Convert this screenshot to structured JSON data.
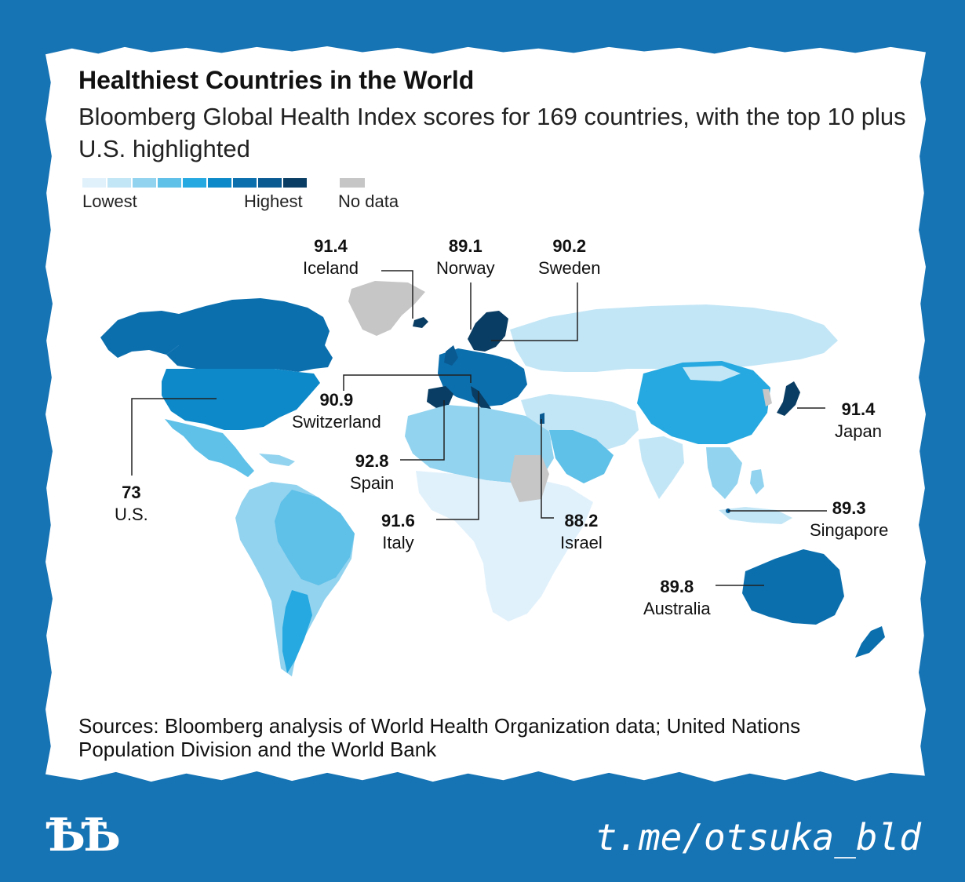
{
  "title": "Healthiest Countries in the World",
  "subtitle": "Bloomberg Global Health Index scores for 169 countries, with the top 10 plus U.S. highlighted",
  "legend": {
    "low_label": "Lowest",
    "high_label": "Highest",
    "nodata_label": "No data",
    "colors": [
      "#e1f1fb",
      "#c3e6f6",
      "#92d3ef",
      "#5fc0e8",
      "#26a9e0",
      "#0d89c9",
      "#0b6fae",
      "#0a5a92",
      "#0a3d63"
    ],
    "nodata_color": "#c6c6c6"
  },
  "callouts": [
    {
      "score": "91.4",
      "country": "Iceland"
    },
    {
      "score": "89.1",
      "country": "Norway"
    },
    {
      "score": "90.2",
      "country": "Sweden"
    },
    {
      "score": "90.9",
      "country": "Switzerland"
    },
    {
      "score": "92.8",
      "country": "Spain"
    },
    {
      "score": "73",
      "country": "U.S."
    },
    {
      "score": "91.6",
      "country": "Italy"
    },
    {
      "score": "88.2",
      "country": "Israel"
    },
    {
      "score": "91.4",
      "country": "Japan"
    },
    {
      "score": "89.3",
      "country": "Singapore"
    },
    {
      "score": "89.8",
      "country": "Australia"
    }
  ],
  "sources": "Sources: Bloomberg analysis of World Health Organization data; United Nations Population Division and the World Bank",
  "footer": {
    "logo_text": "ѢѢ",
    "handle": "t.me/otsuka_bld",
    "colors": {
      "frame": "#1673b4",
      "paper": "#ffffff"
    }
  }
}
